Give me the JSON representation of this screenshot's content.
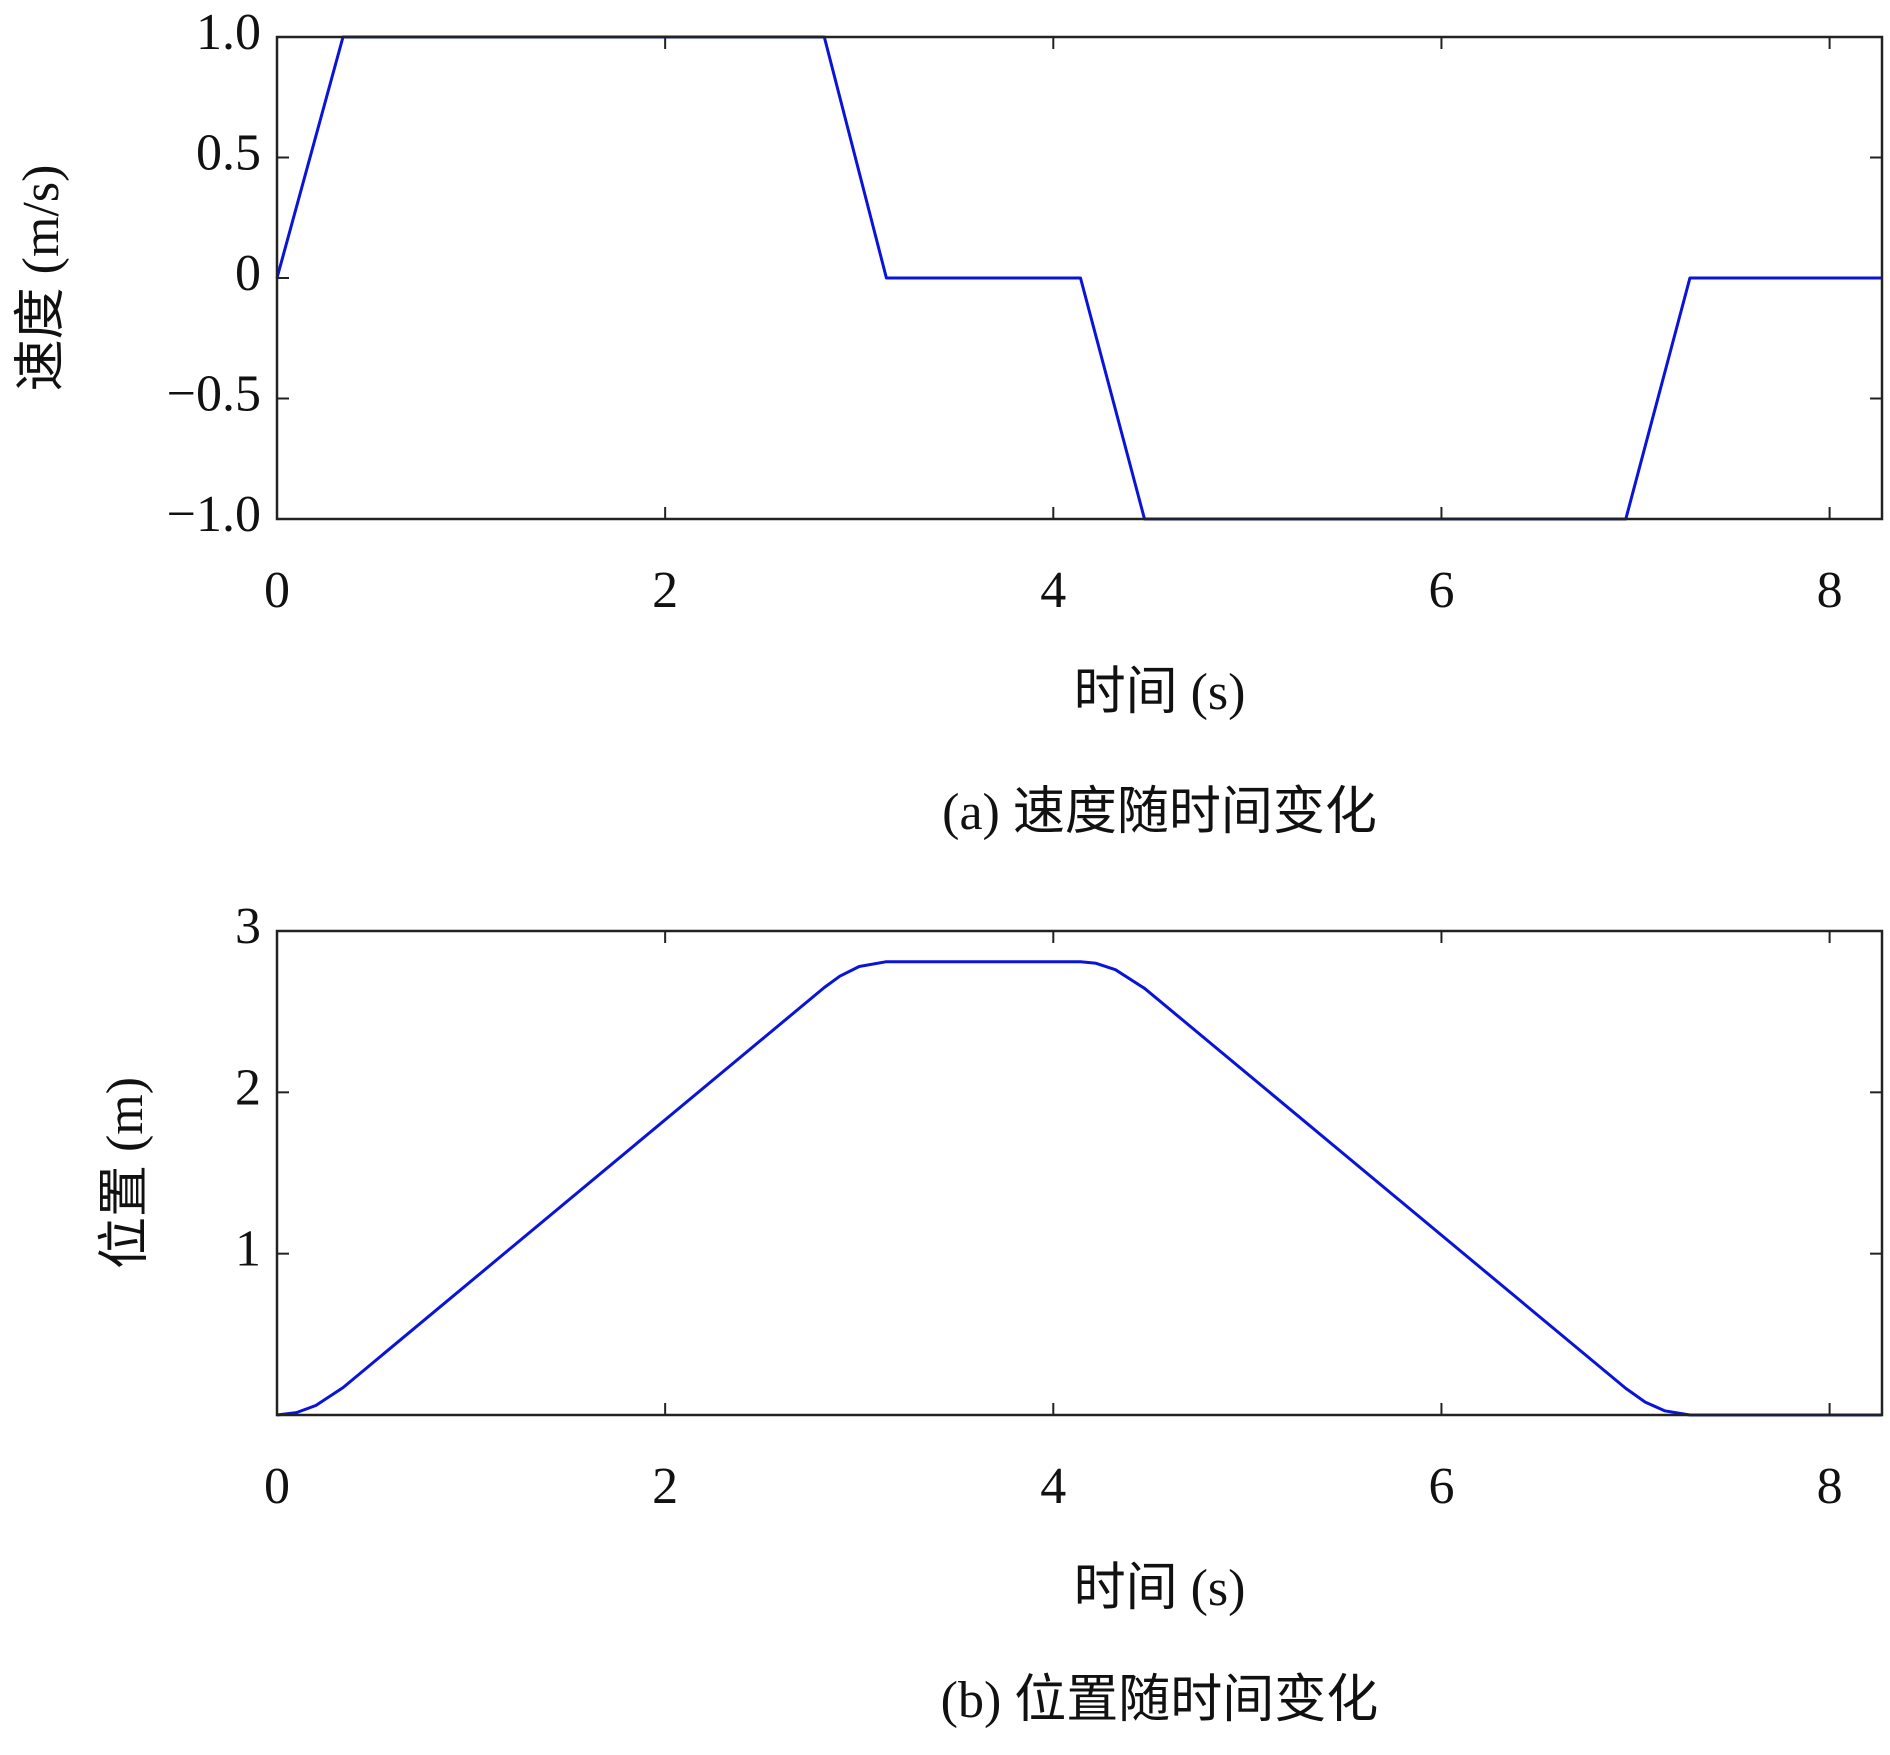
{
  "chart_data": [
    {
      "type": "line",
      "xlabel": "时间 (s)",
      "ylabel": "速度 (m/s)",
      "caption": "(a) 速度随时间变化",
      "x": [
        0,
        0.34,
        2.82,
        3.14,
        4.14,
        4.47,
        6.95,
        7.28,
        8.27
      ],
      "values": [
        0,
        1,
        1,
        0,
        0,
        -1,
        -1,
        0,
        0
      ],
      "color": "#0a14d8",
      "xlim": [
        0,
        8.27
      ],
      "xticks": [
        0,
        2,
        4,
        6,
        8
      ],
      "ylim": [
        -1,
        1
      ],
      "yticks": [
        {
          "value": -1,
          "label": "−1.0"
        },
        {
          "value": -0.5,
          "label": "−0.5"
        },
        0,
        0.5,
        {
          "value": 1,
          "label": "1.0"
        }
      ]
    },
    {
      "type": "line",
      "xlabel": "时间 (s)",
      "ylabel": "位置 (m)",
      "caption": "(b) 位置随时间变化",
      "x": [
        0,
        0.1,
        0.2,
        0.34,
        2.82,
        2.9,
        3.0,
        3.14,
        4.14,
        4.22,
        4.32,
        4.47,
        6.95,
        7.05,
        7.15,
        7.28,
        8.27
      ],
      "values": [
        0,
        0.015,
        0.059,
        0.17,
        2.65,
        2.72,
        2.78,
        2.81,
        2.81,
        2.8,
        2.76,
        2.645,
        0.165,
        0.08,
        0.026,
        0,
        0
      ],
      "color": "#0a14d8",
      "xlim": [
        0,
        8.27
      ],
      "xticks": [
        0,
        2,
        4,
        6,
        8
      ],
      "ylim": [
        0,
        3
      ],
      "yticks": [
        1,
        2,
        3
      ]
    }
  ]
}
